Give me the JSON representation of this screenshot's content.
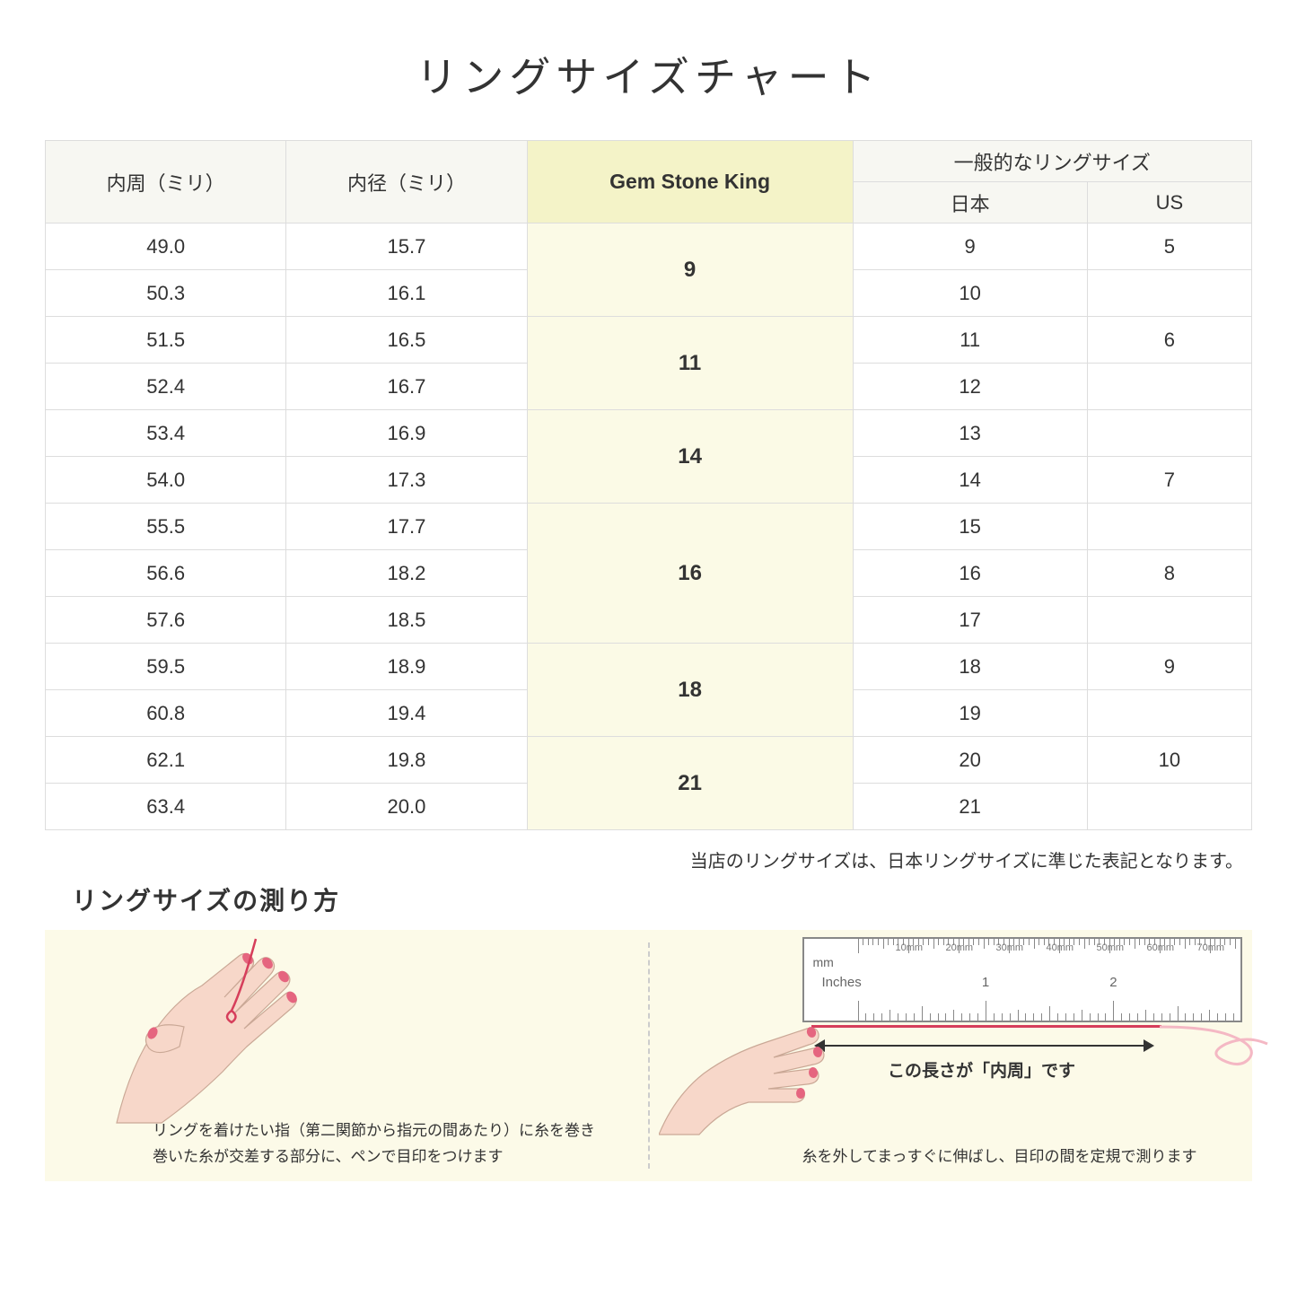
{
  "title": "リングサイズチャート",
  "headers": {
    "inner_circ": "内周（ミリ）",
    "inner_diam": "内径（ミリ）",
    "gsk": "Gem Stone King",
    "common": "一般的なリングサイズ",
    "jp": "日本",
    "us": "US"
  },
  "groups": [
    {
      "gsk": "9",
      "rows": [
        {
          "circ": "49.0",
          "diam": "15.7",
          "jp": "9",
          "us": "5"
        },
        {
          "circ": "50.3",
          "diam": "16.1",
          "jp": "10",
          "us": ""
        }
      ]
    },
    {
      "gsk": "11",
      "rows": [
        {
          "circ": "51.5",
          "diam": "16.5",
          "jp": "11",
          "us": "6"
        },
        {
          "circ": "52.4",
          "diam": "16.7",
          "jp": "12",
          "us": ""
        }
      ]
    },
    {
      "gsk": "14",
      "rows": [
        {
          "circ": "53.4",
          "diam": "16.9",
          "jp": "13",
          "us": ""
        },
        {
          "circ": "54.0",
          "diam": "17.3",
          "jp": "14",
          "us": "7"
        }
      ]
    },
    {
      "gsk": "16",
      "rows": [
        {
          "circ": "55.5",
          "diam": "17.7",
          "jp": "15",
          "us": ""
        },
        {
          "circ": "56.6",
          "diam": "18.2",
          "jp": "16",
          "us": "8"
        },
        {
          "circ": "57.6",
          "diam": "18.5",
          "jp": "17",
          "us": ""
        }
      ]
    },
    {
      "gsk": "18",
      "rows": [
        {
          "circ": "59.5",
          "diam": "18.9",
          "jp": "18",
          "us": "9"
        },
        {
          "circ": "60.8",
          "diam": "19.4",
          "jp": "19",
          "us": ""
        }
      ]
    },
    {
      "gsk": "21",
      "rows": [
        {
          "circ": "62.1",
          "diam": "19.8",
          "jp": "20",
          "us": "10"
        },
        {
          "circ": "63.4",
          "diam": "20.0",
          "jp": "21",
          "us": ""
        }
      ]
    }
  ],
  "note": "当店のリングサイズは、日本リングサイズに準じた表記となります。",
  "measure": {
    "title": "リングサイズの測り方",
    "left_caption": "リングを着けたい指（第二関節から指元の間あたり）に糸を巻き\n巻いた糸が交差する部分に、ペンで目印をつけます",
    "right_caption": "糸を外してまっすぐに伸ばし、目印の間を定規で測ります",
    "arrow_label": "この長さが「内周」です",
    "ruler_mm": "mm",
    "ruler_in": "Inches",
    "mm_marks": [
      "10mm",
      "20mm",
      "30mm",
      "40mm",
      "50mm",
      "60mm",
      "70mm"
    ],
    "in_marks": [
      "1",
      "2"
    ]
  },
  "colors": {
    "header_bg": "#f7f7f2",
    "gsk_header_bg": "#f4f3c8",
    "gsk_cell_bg": "#fbfae6",
    "border": "#ddd",
    "measure_bg": "#fcfae8",
    "skin": "#f7d7c9",
    "nail": "#e5657f",
    "string": "#d63e5b"
  }
}
